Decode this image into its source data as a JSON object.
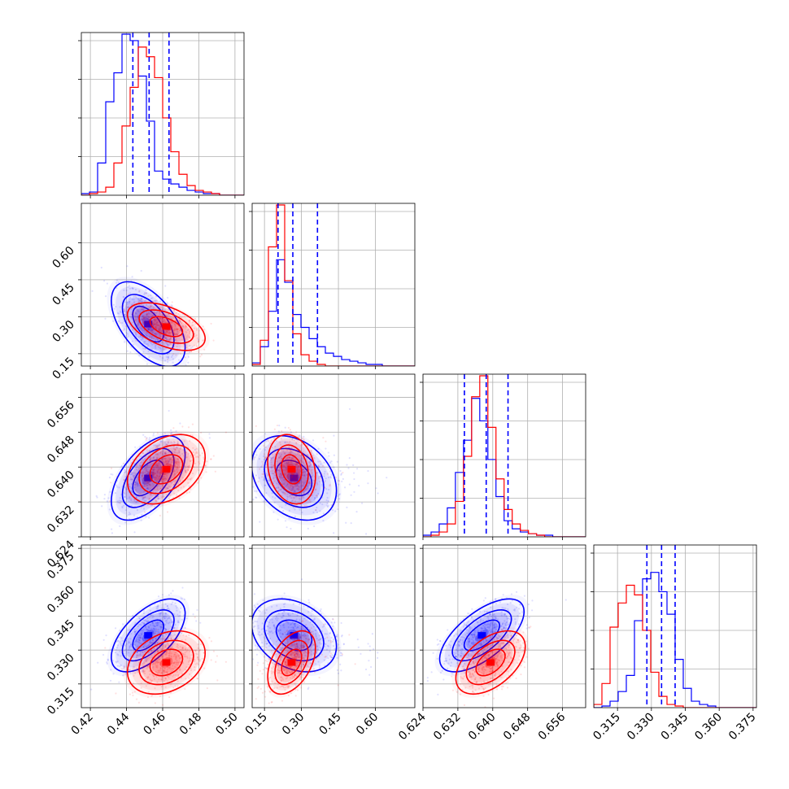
{
  "chart_data": {
    "type": "corner",
    "colors": {
      "series_a": "#0000ff",
      "series_b": "#ff0000"
    },
    "grid": true,
    "parameters": [
      {
        "range": [
          0.415,
          0.505
        ],
        "ticks": [
          "0.42",
          "0.44",
          "0.46",
          "0.48",
          "0.50"
        ],
        "tick_values": [
          0.42,
          0.44,
          0.46,
          0.48,
          0.5
        ]
      },
      {
        "range": [
          0.1,
          0.76
        ],
        "ticks": [
          "0.15",
          "0.30",
          "0.45",
          "0.60"
        ],
        "tick_values": [
          0.15,
          0.3,
          0.45,
          0.6
        ]
      },
      {
        "range": [
          0.624,
          0.6613
        ],
        "ticks": [
          "0.624",
          "0.632",
          "0.640",
          "0.648",
          "0.656"
        ],
        "tick_values": [
          0.624,
          0.632,
          0.64,
          0.648,
          0.656
        ]
      },
      {
        "range": [
          0.3045,
          0.3765
        ],
        "ticks": [
          "0.315",
          "0.330",
          "0.345",
          "0.360",
          "0.375"
        ],
        "tick_values": [
          0.315,
          0.33,
          0.345,
          0.36,
          0.375
        ]
      }
    ],
    "series": [
      {
        "color": "#0000ff",
        "mean": [
          0.452,
          0.27,
          0.6375,
          0.3365
        ],
        "sd": [
          0.0095,
          0.08,
          0.0045,
          0.0075
        ],
        "corr": [
          [
            1,
            -0.55,
            0.55,
            0.6
          ],
          [
            -0.55,
            1,
            -0.3,
            -0.3
          ],
          [
            0.55,
            -0.3,
            1,
            0.65
          ],
          [
            0.6,
            -0.3,
            0.65,
            1
          ]
        ]
      },
      {
        "color": "#ff0000",
        "mean": [
          0.462,
          0.26,
          0.6395,
          0.3245
        ],
        "sd": [
          0.01,
          0.045,
          0.0037,
          0.0065
        ],
        "corr": [
          [
            1,
            -0.5,
            0.35,
            0.3
          ],
          [
            -0.5,
            1,
            -0.2,
            0.45
          ],
          [
            0.35,
            -0.2,
            1,
            0.5
          ],
          [
            0.3,
            0.45,
            0.5,
            1
          ]
        ]
      }
    ],
    "quantile_lines": [
      [
        0.4435,
        0.4525,
        0.4635
      ],
      [
        0.205,
        0.265,
        0.365
      ],
      [
        0.6335,
        0.6385,
        0.6435
      ],
      [
        0.328,
        0.3345,
        0.3405
      ]
    ],
    "histograms": [
      {
        "edges_start": 0.415,
        "bin_width": 0.0045,
        "counts": [
          [
            1,
            2,
            20,
            58,
            76,
            100,
            96,
            74,
            46,
            15,
            10,
            7,
            5,
            3,
            2,
            1,
            1,
            0,
            0,
            0
          ],
          [
            0,
            1,
            2,
            5,
            20,
            43,
            67,
            92,
            86,
            73,
            48,
            27,
            13,
            6,
            3,
            2,
            1,
            0,
            0,
            0
          ]
        ]
      },
      {
        "edges_start": 0.1,
        "bin_width": 0.033,
        "counts": [
          [
            2,
            12,
            34,
            66,
            52,
            32,
            24,
            17,
            12,
            8,
            6,
            4,
            3,
            2,
            1,
            1,
            0,
            0,
            0,
            0
          ],
          [
            1,
            16,
            74,
            100,
            53,
            20,
            7,
            3,
            1,
            0,
            0,
            0,
            0,
            0,
            0,
            0,
            0,
            0,
            0,
            0
          ]
        ]
      },
      {
        "edges_start": 0.624,
        "bin_width": 0.00186,
        "counts": [
          [
            1,
            3,
            8,
            18,
            40,
            60,
            86,
            72,
            48,
            25,
            10,
            5,
            3,
            2,
            1,
            1,
            0,
            0,
            0,
            0
          ],
          [
            0,
            1,
            3,
            8,
            22,
            50,
            87,
            100,
            68,
            36,
            17,
            8,
            4,
            2,
            1,
            0,
            0,
            0,
            0,
            0
          ]
        ]
      },
      {
        "edges_start": 0.3045,
        "bin_width": 0.0036,
        "counts": [
          [
            0,
            1,
            4,
            10,
            20,
            54,
            80,
            84,
            72,
            58,
            30,
            12,
            4,
            2,
            1,
            0,
            0,
            0,
            0,
            0
          ],
          [
            2,
            15,
            50,
            65,
            76,
            70,
            48,
            22,
            7,
            2,
            1,
            0,
            0,
            0,
            0,
            0,
            0,
            0,
            0,
            0
          ]
        ]
      }
    ]
  }
}
